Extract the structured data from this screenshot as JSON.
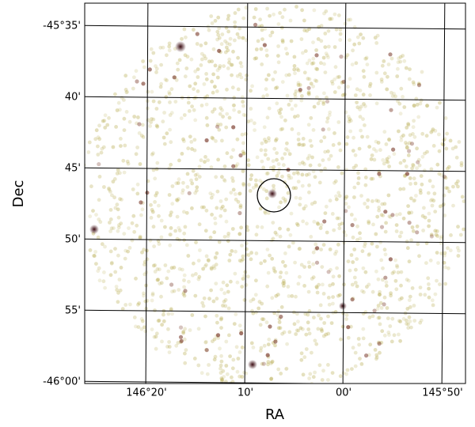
{
  "axes": {
    "xlabel": "RA",
    "ylabel": "Dec",
    "xtick_labels": [
      "146°20'",
      "10'",
      "00'",
      "145°50'"
    ],
    "ytick_labels": [
      "-45°35'",
      "40'",
      "45'",
      "50'",
      "55'",
      "-46°00'"
    ]
  }
}
